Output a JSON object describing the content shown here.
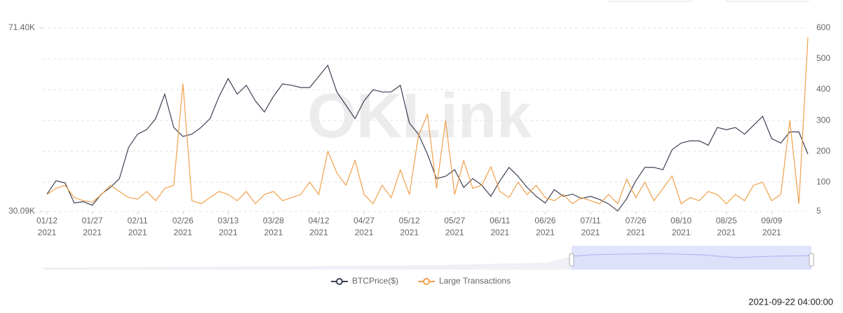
{
  "chart_data": {
    "type": "line",
    "categories": [
      "01/12",
      null,
      null,
      null,
      null,
      "01/27",
      null,
      null,
      null,
      null,
      "02/11",
      null,
      null,
      null,
      null,
      "02/26",
      null,
      null,
      null,
      null,
      "03/13",
      null,
      null,
      null,
      null,
      "03/28",
      null,
      null,
      null,
      null,
      "04/12",
      null,
      null,
      null,
      null,
      "04/27",
      null,
      null,
      null,
      null,
      "05/12",
      null,
      null,
      null,
      null,
      "05/27",
      null,
      null,
      null,
      null,
      "06/11",
      null,
      null,
      null,
      null,
      "06/26",
      null,
      null,
      null,
      null,
      "07/11",
      null,
      null,
      null,
      null,
      "07/26",
      null,
      null,
      null,
      null,
      "08/10",
      null,
      null,
      null,
      null,
      "08/25",
      null,
      null,
      null,
      null,
      "09/09",
      null,
      null,
      null,
      null
    ],
    "category_year": "2021",
    "series": [
      {
        "name": "BTCPrice($)",
        "color": "#3d4154",
        "axis": "y",
        "values": [
          34000,
          37000,
          36500,
          32000,
          32300,
          31500,
          34000,
          35500,
          37500,
          44500,
          47500,
          48500,
          51000,
          56500,
          49000,
          47000,
          47500,
          49000,
          51000,
          56000,
          60000,
          56500,
          58500,
          55000,
          52500,
          56000,
          58800,
          58500,
          58000,
          58000,
          60500,
          63000,
          57000,
          54000,
          51000,
          55000,
          57500,
          57000,
          57000,
          58500,
          50000,
          47500,
          43000,
          37500,
          38000,
          39500,
          35500,
          37500,
          36000,
          33500,
          37000,
          40000,
          38000,
          35500,
          33500,
          32000,
          35000,
          33500,
          34000,
          33000,
          33500,
          32800,
          31800,
          30200,
          33000,
          37000,
          40000,
          40000,
          39500,
          44000,
          45500,
          46000,
          46000,
          45000,
          49000,
          48500,
          49000,
          47500,
          49500,
          51500,
          46500,
          45500,
          48000,
          48000,
          43000
        ]
      },
      {
        "name": "Large Transactions",
        "color": "#f0a04b",
        "axis": "y2",
        "values": [
          60,
          80,
          90,
          50,
          40,
          35,
          60,
          90,
          70,
          50,
          45,
          70,
          40,
          80,
          90,
          420,
          40,
          30,
          50,
          70,
          60,
          40,
          70,
          30,
          60,
          70,
          40,
          50,
          60,
          100,
          60,
          200,
          130,
          90,
          170,
          60,
          30,
          90,
          50,
          140,
          60,
          250,
          320,
          80,
          300,
          60,
          170,
          80,
          90,
          150,
          70,
          50,
          100,
          60,
          90,
          50,
          40,
          60,
          30,
          50,
          40,
          30,
          60,
          30,
          110,
          50,
          100,
          40,
          80,
          120,
          30,
          50,
          40,
          70,
          60,
          30,
          60,
          40,
          90,
          100,
          40,
          60,
          300,
          30,
          570
        ]
      }
    ],
    "ylim": [
      30090,
      71400
    ],
    "yticks": [
      {
        "value": 30090,
        "label": "30.09K"
      },
      {
        "value": 71400,
        "label": "71.40K"
      }
    ],
    "y2lim": [
      5,
      600
    ],
    "y2ticks": [
      5,
      100,
      200,
      300,
      400,
      500,
      600
    ],
    "grid": true,
    "watermark": "OKLink",
    "timestamp": "2021-09-22 04:00:00"
  }
}
